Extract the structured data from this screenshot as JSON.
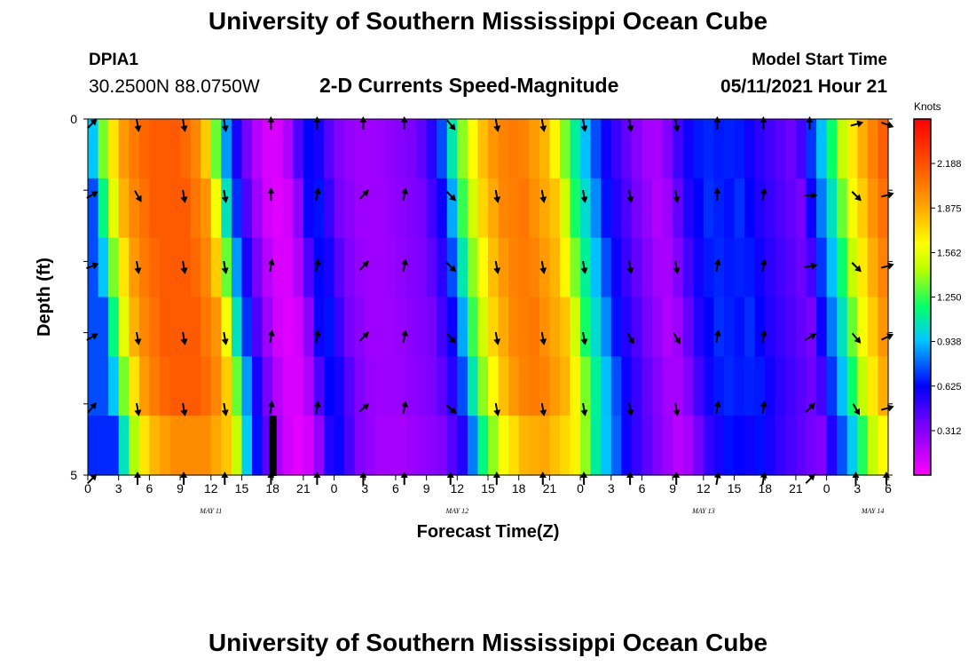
{
  "header": {
    "title": "University of Southern Mississippi Ocean Cube",
    "station_id": "DPIA1",
    "coords": "30.2500N  88.0750W",
    "model_start_label": "Model Start Time",
    "model_start_value": "05/11/2021 Hour 21"
  },
  "footer": {
    "title": "University of Southern Mississippi Ocean Cube"
  },
  "chart_data": {
    "type": "heatmap",
    "title": "2-D Currents Speed-Magnitude",
    "xlabel": "Forecast Time(Z)",
    "ylabel": "Depth (ft)",
    "colorbar_label": "Knots",
    "colorbar_ticks": [
      "0.312",
      "0.625",
      "0.938",
      "1.250",
      "1.562",
      "1.875",
      "2.188"
    ],
    "colorbar_range": [
      0.0,
      2.5
    ],
    "x_tick_labels": [
      "0",
      "3",
      "6",
      "9",
      "12",
      "15",
      "18",
      "21",
      "0",
      "3",
      "6",
      "9",
      "12",
      "15",
      "18",
      "21",
      "0",
      "3",
      "6",
      "9",
      "12",
      "15",
      "18",
      "21",
      "0",
      "3",
      "6"
    ],
    "day_labels": [
      {
        "label": "MAY 11",
        "tick_index": 4
      },
      {
        "label": "MAY 12",
        "tick_index": 12
      },
      {
        "label": "MAY 13",
        "tick_index": 20
      },
      {
        "label": "MAY 14",
        "tick_index": 25.5
      }
    ],
    "x_range_hours": [
      0,
      78
    ],
    "y_tick_labels": [
      "0",
      "5"
    ],
    "y_range_ft": [
      0,
      5
    ],
    "depth_levels": 5,
    "speed_profile_knots": [
      {
        "h": 0,
        "v": 0.75
      },
      {
        "h": 1,
        "v": 1.15
      },
      {
        "h": 2,
        "v": 1.55
      },
      {
        "h": 3,
        "v": 1.85
      },
      {
        "h": 4,
        "v": 2.0
      },
      {
        "h": 6,
        "v": 2.15
      },
      {
        "h": 9,
        "v": 2.15
      },
      {
        "h": 11,
        "v": 1.95
      },
      {
        "h": 12,
        "v": 1.6
      },
      {
        "h": 13,
        "v": 1.05
      },
      {
        "h": 14,
        "v": 0.7
      },
      {
        "h": 15,
        "v": 0.45
      },
      {
        "h": 16,
        "v": 0.25
      },
      {
        "h": 17,
        "v": 0.12
      },
      {
        "h": 18,
        "v": 0.08
      },
      {
        "h": 19,
        "v": 0.12
      },
      {
        "h": 20,
        "v": 0.3
      },
      {
        "h": 21,
        "v": 0.6
      },
      {
        "h": 22,
        "v": 0.65
      },
      {
        "h": 24,
        "v": 0.35
      },
      {
        "h": 26,
        "v": 0.25
      },
      {
        "h": 28,
        "v": 0.25
      },
      {
        "h": 32,
        "v": 0.35
      },
      {
        "h": 34,
        "v": 0.6
      },
      {
        "h": 35,
        "v": 0.9
      },
      {
        "h": 36,
        "v": 1.25
      },
      {
        "h": 38,
        "v": 1.75
      },
      {
        "h": 40,
        "v": 2.0
      },
      {
        "h": 42,
        "v": 2.05
      },
      {
        "h": 45,
        "v": 1.8
      },
      {
        "h": 47,
        "v": 1.2
      },
      {
        "h": 49,
        "v": 0.85
      },
      {
        "h": 50,
        "v": 0.65
      },
      {
        "h": 53,
        "v": 0.35
      },
      {
        "h": 55,
        "v": 0.2
      },
      {
        "h": 56,
        "v": 0.25
      },
      {
        "h": 58,
        "v": 0.55
      },
      {
        "h": 60,
        "v": 0.7
      },
      {
        "h": 62,
        "v": 0.65
      },
      {
        "h": 63,
        "v": 0.7
      },
      {
        "h": 65,
        "v": 0.55
      },
      {
        "h": 67,
        "v": 0.45
      },
      {
        "h": 69,
        "v": 0.35
      },
      {
        "h": 70,
        "v": 0.6
      },
      {
        "h": 72,
        "v": 1.05
      },
      {
        "h": 74,
        "v": 1.6
      },
      {
        "h": 76,
        "v": 1.95
      },
      {
        "h": 78,
        "v": 2.2
      }
    ],
    "depth_shift_hours": [
      0,
      0.5,
      1,
      1.5,
      2
    ],
    "vector_times_hours": [
      0,
      4.5,
      9,
      13,
      17.5,
      22,
      26.5,
      30.5,
      35,
      39.5,
      44,
      48,
      52.5,
      57,
      61,
      65.5,
      70,
      74.5,
      78
    ],
    "vector_directions_deg": [
      [
        45,
        170,
        170,
        170,
        0,
        0,
        0,
        0,
        140,
        170,
        170,
        170,
        170,
        170,
        0,
        0,
        0,
        75,
        110
      ],
      [
        60,
        150,
        170,
        170,
        0,
        10,
        45,
        10,
        135,
        170,
        170,
        170,
        170,
        170,
        0,
        10,
        90,
        135,
        75
      ],
      [
        70,
        170,
        170,
        170,
        10,
        10,
        45,
        10,
        135,
        170,
        170,
        170,
        170,
        170,
        10,
        10,
        80,
        135,
        75
      ],
      [
        60,
        170,
        170,
        170,
        10,
        10,
        45,
        10,
        140,
        170,
        170,
        170,
        150,
        150,
        10,
        10,
        60,
        140,
        65
      ],
      [
        40,
        170,
        170,
        170,
        10,
        10,
        50,
        10,
        130,
        170,
        170,
        170,
        170,
        170,
        10,
        10,
        45,
        150,
        75
      ],
      [
        45,
        0,
        0,
        0,
        0,
        0,
        0,
        0,
        0,
        0,
        0,
        0,
        0,
        0,
        10,
        10,
        45,
        0,
        0
      ]
    ]
  }
}
